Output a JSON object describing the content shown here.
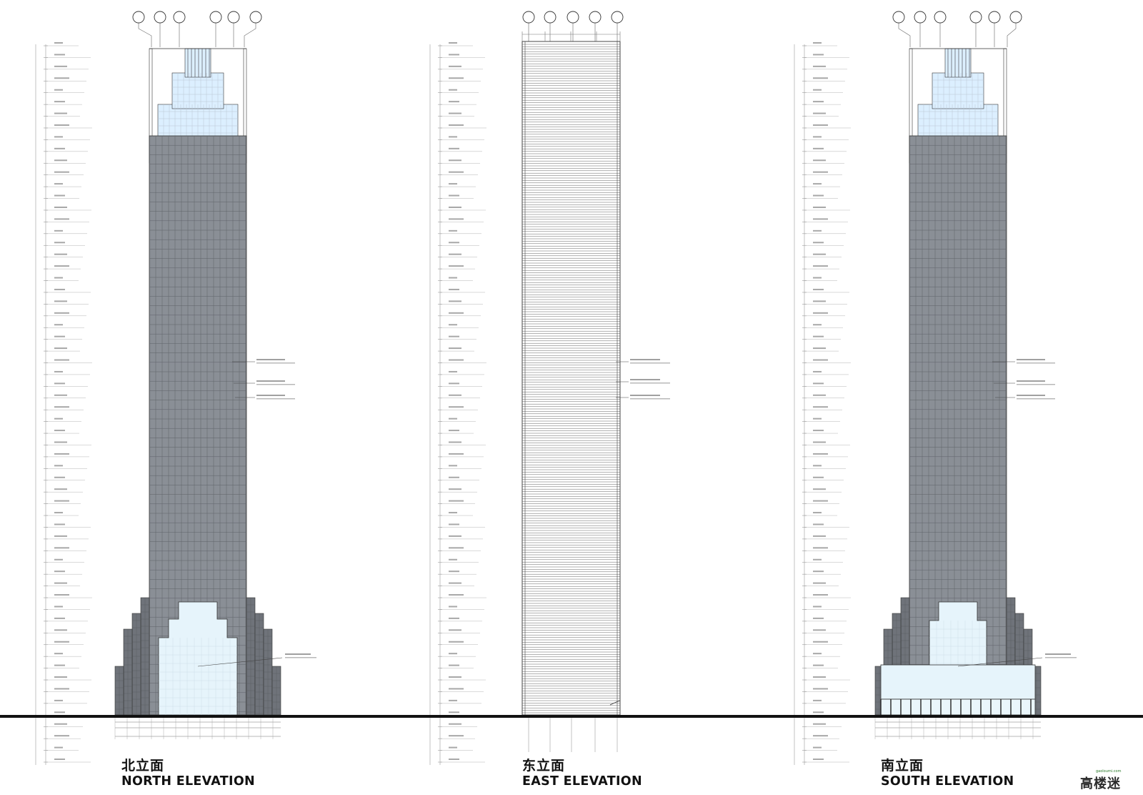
{
  "elevations": [
    {
      "key": "north",
      "title_cn": "北立面",
      "title_en": "NORTH ELEVATION"
    },
    {
      "key": "east",
      "title_cn": "东立面",
      "title_en": "EAST ELEVATION"
    },
    {
      "key": "south",
      "title_cn": "南立面",
      "title_en": "SOUTH ELEVATION"
    }
  ],
  "watermark": {
    "text": "高楼迷",
    "url": "gaoloumi.com"
  },
  "colors": {
    "line": "#333333",
    "faint": "#9a9a9a",
    "curtain_wall": "#8a8f96",
    "base_dark": "#6f737a",
    "glass_light": "#dcefff",
    "lobby_glass": "#e6f4fb",
    "ground": "#111111"
  }
}
